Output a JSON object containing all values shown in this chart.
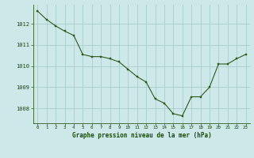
{
  "x": [
    0,
    1,
    2,
    3,
    4,
    5,
    6,
    7,
    8,
    9,
    10,
    11,
    12,
    13,
    14,
    15,
    16,
    17,
    18,
    19,
    20,
    21,
    22,
    23
  ],
  "y": [
    1012.6,
    1012.2,
    1011.9,
    1011.65,
    1011.45,
    1010.55,
    1010.45,
    1010.45,
    1010.35,
    1010.2,
    1009.85,
    1009.5,
    1009.25,
    1008.45,
    1008.25,
    1007.75,
    1007.65,
    1008.55,
    1008.55,
    1009.0,
    1010.1,
    1010.1,
    1010.35,
    1010.55
  ],
  "line_color": "#2d5a1b",
  "marker_color": "#2d5a1b",
  "bg_color": "#cce8e8",
  "grid_color": "#aacccc",
  "axis_color": "#2d5a1b",
  "label_color": "#1a4a0a",
  "xlabel": "Graphe pression niveau de la mer (hPa)",
  "yticks": [
    1008,
    1009,
    1010,
    1011,
    1012
  ],
  "xticks": [
    0,
    1,
    2,
    3,
    4,
    5,
    6,
    7,
    8,
    9,
    10,
    11,
    12,
    13,
    14,
    15,
    16,
    17,
    18,
    19,
    20,
    21,
    22,
    23
  ],
  "ylim": [
    1007.3,
    1012.9
  ],
  "xlim": [
    -0.5,
    23.5
  ]
}
